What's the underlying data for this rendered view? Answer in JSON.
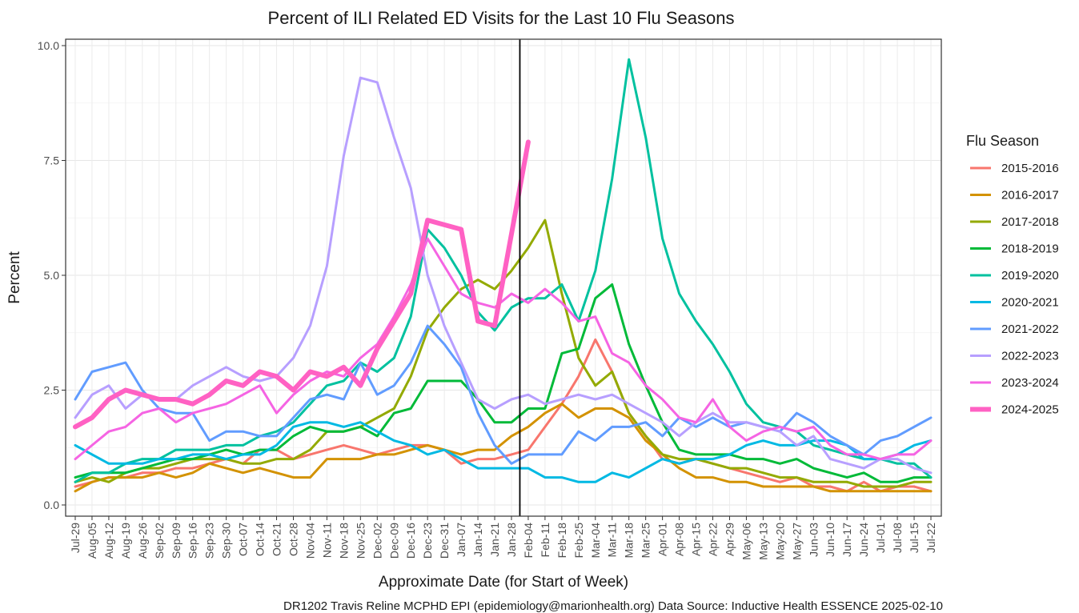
{
  "chart_data": {
    "type": "line",
    "title": "Percent of ILI Related ED Visits for the Last 10 Flu Seasons",
    "xlabel": "Approximate Date (for Start of Week)",
    "ylabel": "Percent",
    "caption": "DR1202 Travis Reline MCPHD EPI (epidemiology@marionhealth.org) Data Source: Inductive Health ESSENCE 2025-02-10",
    "legend_title": "Flu Season",
    "legend_position": "right",
    "grid": true,
    "ylim": [
      0,
      10
    ],
    "yticks": [
      "0.0",
      "2.5",
      "5.0",
      "7.5",
      "10.0"
    ],
    "x_ticks": [
      "Jul-29",
      "Aug-05",
      "Aug-12",
      "Aug-19",
      "Aug-26",
      "Sep-02",
      "Sep-09",
      "Sep-16",
      "Sep-23",
      "Sep-30",
      "Oct-07",
      "Oct-14",
      "Oct-21",
      "Oct-28",
      "Nov-04",
      "Nov-11",
      "Nov-18",
      "Nov-25",
      "Dec-02",
      "Dec-09",
      "Dec-16",
      "Dec-23",
      "Dec-31",
      "Jan-07",
      "Jan-14",
      "Jan-21",
      "Jan-28",
      "Feb-04",
      "Feb-11",
      "Feb-18",
      "Feb-25",
      "Mar-04",
      "Mar-11",
      "Mar-18",
      "Mar-25",
      "Apr-01",
      "Apr-08",
      "Apr-15",
      "Apr-22",
      "Apr-29",
      "May-06",
      "May-13",
      "May-20",
      "May-27",
      "Jun-03",
      "Jun-10",
      "Jun-17",
      "Jun-24",
      "Jul-01",
      "Jul-08",
      "Jul-15",
      "Jul-22"
    ],
    "vertical_line_at": "Feb-04",
    "series": [
      {
        "name": "2015-2016",
        "color": "#F8766D",
        "values": [
          0.4,
          0.5,
          0.6,
          0.6,
          0.7,
          0.7,
          0.8,
          0.8,
          0.9,
          1.0,
          0.9,
          1.2,
          1.2,
          1.0,
          1.1,
          1.2,
          1.3,
          1.2,
          1.1,
          1.2,
          1.3,
          1.3,
          1.2,
          0.9,
          1.0,
          1.0,
          1.1,
          1.2,
          1.7,
          2.2,
          2.8,
          3.6,
          2.9,
          2.0,
          1.5,
          1.0,
          0.9,
          1.0,
          0.9,
          0.8,
          0.7,
          0.6,
          0.5,
          0.6,
          0.4,
          0.4,
          0.3,
          0.5,
          0.3,
          0.4,
          0.4,
          0.3
        ]
      },
      {
        "name": "2016-2017",
        "color": "#D39200",
        "values": [
          0.3,
          0.5,
          0.6,
          0.6,
          0.6,
          0.7,
          0.6,
          0.7,
          0.9,
          0.8,
          0.7,
          0.8,
          0.7,
          0.6,
          0.6,
          1.0,
          1.0,
          1.0,
          1.1,
          1.1,
          1.2,
          1.3,
          1.2,
          1.1,
          1.2,
          1.2,
          1.5,
          1.7,
          2.0,
          2.2,
          1.9,
          2.1,
          2.1,
          1.9,
          1.4,
          1.1,
          0.8,
          0.6,
          0.6,
          0.5,
          0.5,
          0.4,
          0.4,
          0.4,
          0.4,
          0.3,
          0.3,
          0.3,
          0.3,
          0.3,
          0.3,
          0.3
        ]
      },
      {
        "name": "2017-2018",
        "color": "#93AA00",
        "values": [
          0.5,
          0.6,
          0.5,
          0.7,
          0.8,
          0.8,
          0.9,
          1.0,
          1.0,
          1.0,
          0.9,
          0.9,
          1.0,
          1.0,
          1.2,
          1.6,
          1.6,
          1.7,
          1.9,
          2.1,
          2.8,
          3.8,
          4.3,
          4.7,
          4.9,
          4.7,
          5.1,
          5.6,
          6.2,
          4.6,
          3.2,
          2.6,
          2.9,
          2.0,
          1.5,
          1.1,
          1.0,
          1.0,
          0.9,
          0.8,
          0.8,
          0.7,
          0.6,
          0.6,
          0.5,
          0.5,
          0.5,
          0.4,
          0.4,
          0.4,
          0.5,
          0.5
        ]
      },
      {
        "name": "2018-2019",
        "color": "#00BA38",
        "values": [
          0.6,
          0.7,
          0.7,
          0.7,
          0.8,
          0.9,
          1.0,
          1.0,
          1.1,
          1.2,
          1.1,
          1.2,
          1.2,
          1.5,
          1.7,
          1.6,
          1.6,
          1.7,
          1.5,
          2.0,
          2.1,
          2.7,
          2.7,
          2.7,
          2.3,
          1.8,
          1.8,
          2.1,
          2.1,
          3.3,
          3.4,
          4.5,
          4.8,
          3.5,
          2.6,
          1.8,
          1.2,
          1.1,
          1.1,
          1.1,
          1.0,
          1.0,
          0.9,
          1.0,
          0.8,
          0.7,
          0.6,
          0.7,
          0.5,
          0.5,
          0.6,
          0.6
        ]
      },
      {
        "name": "2019-2020",
        "color": "#00C19F",
        "values": [
          0.5,
          0.7,
          0.7,
          0.9,
          1.0,
          1.0,
          1.2,
          1.2,
          1.2,
          1.3,
          1.3,
          1.5,
          1.6,
          1.8,
          2.2,
          2.6,
          2.7,
          3.1,
          2.9,
          3.2,
          4.1,
          6.0,
          5.6,
          5.0,
          4.2,
          3.8,
          4.3,
          4.5,
          4.5,
          4.8,
          4.0,
          5.1,
          7.1,
          9.7,
          8.0,
          5.8,
          4.6,
          4.0,
          3.5,
          2.9,
          2.2,
          1.8,
          1.7,
          1.6,
          1.3,
          1.2,
          1.1,
          1.0,
          1.0,
          0.9,
          0.9,
          0.6
        ]
      },
      {
        "name": "2020-2021",
        "color": "#00B9E3",
        "values": [
          1.3,
          1.1,
          0.9,
          0.9,
          0.9,
          1.0,
          1.0,
          1.1,
          1.1,
          1.0,
          1.1,
          1.1,
          1.3,
          1.7,
          1.8,
          1.8,
          1.7,
          1.8,
          1.6,
          1.4,
          1.3,
          1.1,
          1.2,
          1.0,
          0.8,
          0.8,
          0.8,
          0.8,
          0.6,
          0.6,
          0.5,
          0.5,
          0.7,
          0.6,
          0.8,
          1.0,
          0.9,
          1.0,
          1.0,
          1.1,
          1.3,
          1.4,
          1.3,
          1.3,
          1.4,
          1.4,
          1.3,
          1.0,
          1.0,
          1.1,
          1.3,
          1.4
        ]
      },
      {
        "name": "2021-2022",
        "color": "#619CFF",
        "values": [
          2.3,
          2.9,
          3.0,
          3.1,
          2.5,
          2.1,
          2.0,
          2.0,
          1.4,
          1.6,
          1.6,
          1.5,
          1.5,
          1.9,
          2.3,
          2.4,
          2.3,
          3.1,
          2.4,
          2.6,
          3.1,
          3.9,
          3.5,
          3.0,
          2.0,
          1.3,
          0.9,
          1.1,
          1.1,
          1.1,
          1.6,
          1.4,
          1.7,
          1.7,
          1.8,
          1.5,
          1.9,
          1.7,
          1.9,
          1.7,
          1.8,
          1.7,
          1.6,
          2.0,
          1.8,
          1.5,
          1.3,
          1.1,
          1.4,
          1.5,
          1.7,
          1.9
        ]
      },
      {
        "name": "2022-2023",
        "color": "#B79FFF",
        "values": [
          1.9,
          2.4,
          2.6,
          2.1,
          2.4,
          2.3,
          2.3,
          2.6,
          2.8,
          3.0,
          2.8,
          2.7,
          2.8,
          3.2,
          3.9,
          5.2,
          7.6,
          9.3,
          9.2,
          8.0,
          6.9,
          5.0,
          3.9,
          3.1,
          2.3,
          2.1,
          2.3,
          2.4,
          2.2,
          2.3,
          2.4,
          2.3,
          2.4,
          2.2,
          2.0,
          1.8,
          1.5,
          1.8,
          2.0,
          1.8,
          1.8,
          1.7,
          1.6,
          1.3,
          1.5,
          1.0,
          0.9,
          0.8,
          1.0,
          1.0,
          0.8,
          0.7
        ]
      },
      {
        "name": "2023-2024",
        "color": "#F564E3",
        "values": [
          1.0,
          1.3,
          1.6,
          1.7,
          2.0,
          2.1,
          1.8,
          2.0,
          2.1,
          2.2,
          2.4,
          2.6,
          2.0,
          2.4,
          2.7,
          2.9,
          2.8,
          3.2,
          3.5,
          4.1,
          4.8,
          5.8,
          5.2,
          4.6,
          4.4,
          4.3,
          4.6,
          4.4,
          4.7,
          4.4,
          4.0,
          4.1,
          3.3,
          3.1,
          2.6,
          2.3,
          1.9,
          1.8,
          2.3,
          1.7,
          1.4,
          1.6,
          1.7,
          1.6,
          1.7,
          1.3,
          1.1,
          1.1,
          1.0,
          1.1,
          1.1,
          1.4
        ]
      },
      {
        "name": "2024-2025",
        "color": "#FF61C3",
        "values": [
          1.7,
          1.9,
          2.3,
          2.5,
          2.4,
          2.3,
          2.3,
          2.2,
          2.4,
          2.7,
          2.6,
          2.9,
          2.8,
          2.5,
          2.9,
          2.8,
          3.0,
          2.6,
          3.4,
          4.0,
          4.6,
          6.2,
          6.1,
          6.0,
          4.0,
          3.9,
          5.9,
          7.9
        ]
      }
    ]
  }
}
